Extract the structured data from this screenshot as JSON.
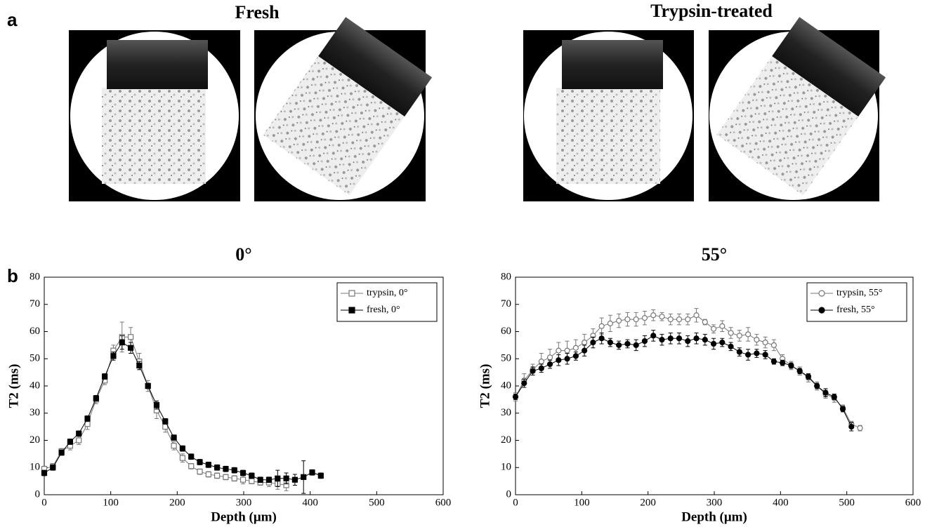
{
  "panel_labels": [
    "a",
    "b"
  ],
  "image_titles": [
    "Fresh",
    "Trypsin-treated"
  ],
  "chart_data": [
    {
      "type": "line",
      "title": "0°",
      "x_label": "Depth (μm)",
      "y_label": "T2 (ms)",
      "xlim": [
        0,
        600
      ],
      "xticks": [
        0,
        100,
        200,
        300,
        400,
        500,
        600
      ],
      "ylim": [
        0,
        80
      ],
      "yticks": [
        0,
        10,
        20,
        30,
        40,
        50,
        60,
        70,
        80
      ],
      "legend": "upper right",
      "series": [
        {
          "name": "trypsin, 0°",
          "color": "#777777",
          "marker": "square",
          "filled": false,
          "x": [
            0,
            13,
            26,
            39,
            52,
            65,
            78,
            91,
            104,
            117,
            130,
            143,
            156,
            169,
            182,
            195,
            208,
            221,
            234,
            247,
            260,
            273,
            286,
            299,
            312,
            325,
            338,
            351,
            364
          ],
          "values": [
            9.5,
            10.5,
            16,
            18,
            20,
            26,
            35,
            42,
            53,
            58,
            58,
            49,
            40,
            31,
            25,
            18,
            13.5,
            10.5,
            8.5,
            7.5,
            7,
            6.5,
            6,
            5.5,
            5,
            4.5,
            4.5,
            4,
            3.5
          ],
          "errors": [
            1,
            1,
            1,
            1.5,
            1.5,
            2,
            1.5,
            1.5,
            2,
            5.5,
            3.5,
            3,
            2,
            3,
            2,
            1.5,
            1.5,
            1,
            1,
            1,
            1,
            1,
            1,
            1.5,
            1,
            1,
            1.5,
            2,
            2
          ]
        },
        {
          "name": "fresh, 0°",
          "color": "#000000",
          "marker": "square",
          "filled": true,
          "x": [
            0,
            13,
            26,
            39,
            52,
            65,
            78,
            91,
            104,
            117,
            130,
            143,
            156,
            169,
            182,
            195,
            208,
            221,
            234,
            247,
            260,
            273,
            286,
            299,
            312,
            325,
            338,
            351,
            364,
            377,
            390,
            403,
            416
          ],
          "values": [
            8,
            10,
            15.5,
            19.5,
            22.5,
            28,
            35.5,
            43.5,
            51,
            56,
            54,
            47.5,
            40,
            33,
            27,
            21,
            17,
            14,
            12,
            11,
            10,
            9.5,
            9,
            8,
            7,
            5.5,
            5.5,
            6,
            6,
            5.5,
            6.5,
            8.2,
            7
          ],
          "errors": [
            1,
            1,
            1,
            1,
            1,
            1,
            1,
            1,
            1.5,
            2.5,
            2,
            1.5,
            1,
            1.5,
            1,
            1,
            1,
            1,
            1,
            1,
            1,
            1,
            1,
            1,
            1,
            1,
            1,
            3,
            2,
            2,
            6,
            1,
            1
          ]
        }
      ]
    },
    {
      "type": "line",
      "title": "55°",
      "x_label": "Depth (μm)",
      "y_label": "T2 (ms)",
      "xlim": [
        0,
        600
      ],
      "xticks": [
        0,
        100,
        200,
        300,
        400,
        500,
        600
      ],
      "ylim": [
        0,
        80
      ],
      "yticks": [
        0,
        10,
        20,
        30,
        40,
        50,
        60,
        70,
        80
      ],
      "legend": "upper right",
      "series": [
        {
          "name": "trypsin, 55°",
          "color": "#777777",
          "marker": "circle",
          "filled": false,
          "x": [
            0,
            13,
            26,
            39,
            52,
            65,
            78,
            91,
            104,
            117,
            130,
            143,
            156,
            169,
            182,
            195,
            208,
            221,
            234,
            247,
            260,
            273,
            286,
            299,
            312,
            325,
            338,
            351,
            364,
            377,
            390,
            403,
            416,
            429,
            442,
            455,
            468,
            481,
            494,
            507,
            520
          ],
          "values": [
            36,
            42,
            46,
            49,
            50.5,
            53,
            53,
            54,
            56,
            58.5,
            62,
            63,
            64,
            64.5,
            64.5,
            65,
            66,
            65.5,
            64.5,
            64.5,
            64.5,
            66,
            63.5,
            61,
            62,
            59.5,
            58.5,
            59,
            57,
            56,
            55,
            50,
            47.5,
            45.5,
            43,
            40,
            37,
            35.5,
            32,
            26,
            24.5
          ],
          "errors": [
            1.5,
            2.5,
            2,
            3,
            3,
            3,
            3.5,
            3,
            3,
            2.5,
            3,
            3,
            2.5,
            2.5,
            2.5,
            2.5,
            2,
            1.5,
            2,
            2,
            2,
            2.5,
            1,
            1.5,
            2,
            2,
            2,
            2.5,
            2,
            2,
            2,
            1.5,
            1.5,
            1.5,
            1.5,
            1.5,
            1.5,
            1.5,
            1,
            1,
            1
          ]
        },
        {
          "name": "fresh, 55°",
          "color": "#000000",
          "marker": "circle",
          "filled": true,
          "x": [
            0,
            13,
            26,
            39,
            52,
            65,
            78,
            91,
            104,
            117,
            130,
            143,
            156,
            169,
            182,
            195,
            208,
            221,
            234,
            247,
            260,
            273,
            286,
            299,
            312,
            325,
            338,
            351,
            364,
            377,
            390,
            403,
            416,
            429,
            442,
            455,
            468,
            481,
            494,
            507
          ],
          "values": [
            36,
            41,
            45.5,
            46.5,
            48,
            49.5,
            50,
            51,
            53,
            56,
            57.5,
            56,
            55,
            55.5,
            55,
            56.5,
            58.5,
            57,
            57.5,
            57.5,
            56.5,
            57.5,
            57,
            55.5,
            56,
            54.5,
            52.5,
            51.5,
            52,
            51.5,
            49,
            48.5,
            47.5,
            45.5,
            43.5,
            40,
            37.5,
            36,
            31.5,
            25
          ],
          "errors": [
            1,
            1.5,
            1.5,
            1.5,
            1.5,
            2,
            2,
            1.5,
            2,
            2,
            2,
            1.5,
            1.5,
            1.5,
            2,
            2,
            2,
            2,
            2,
            2,
            2,
            2,
            2,
            2,
            1.5,
            1.5,
            1.5,
            2,
            1.5,
            1.5,
            1,
            1,
            1,
            1,
            1,
            1,
            1.5,
            1,
            1,
            1.5
          ]
        }
      ]
    }
  ]
}
